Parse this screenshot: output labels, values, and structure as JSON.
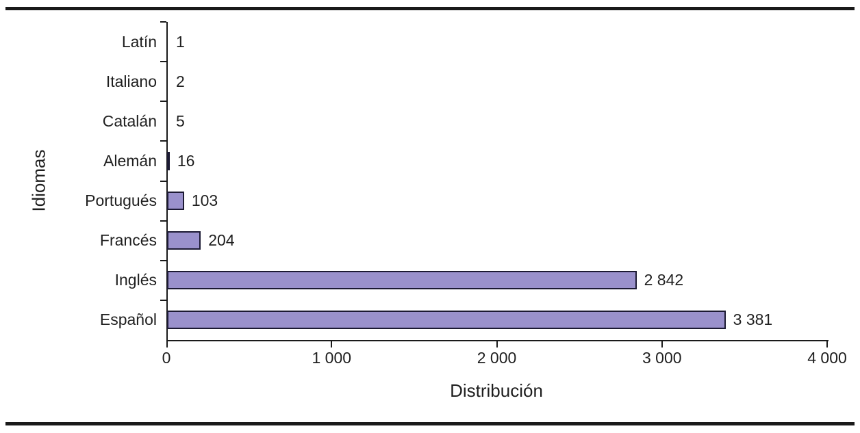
{
  "chart_data": {
    "type": "bar",
    "orientation": "horizontal",
    "title": "",
    "xlabel": "Distribución",
    "ylabel": "Idiomas",
    "categories": [
      "Latín",
      "Italiano",
      "Catalán",
      "Alemán",
      "Portugués",
      "Francés",
      "Inglés",
      "Español"
    ],
    "values": [
      1,
      2,
      5,
      16,
      103,
      204,
      2842,
      3381
    ],
    "value_labels": [
      "1",
      "2",
      "5",
      "16",
      "103",
      "204",
      "2 842",
      "3 381"
    ],
    "xlim": [
      0,
      4000
    ],
    "x_ticks": [
      0,
      1000,
      2000,
      3000,
      4000
    ],
    "x_tick_labels": [
      "0",
      "1 000",
      "2 000",
      "3 000",
      "4 000"
    ],
    "grid": false,
    "legend": null,
    "bar_color": "#9a91cc",
    "bar_border_color": "#1c1a33",
    "axis_color": "#1a1a1a",
    "text_color": "#1f1f1f",
    "frame_rule_color": "#1a1a1a"
  }
}
